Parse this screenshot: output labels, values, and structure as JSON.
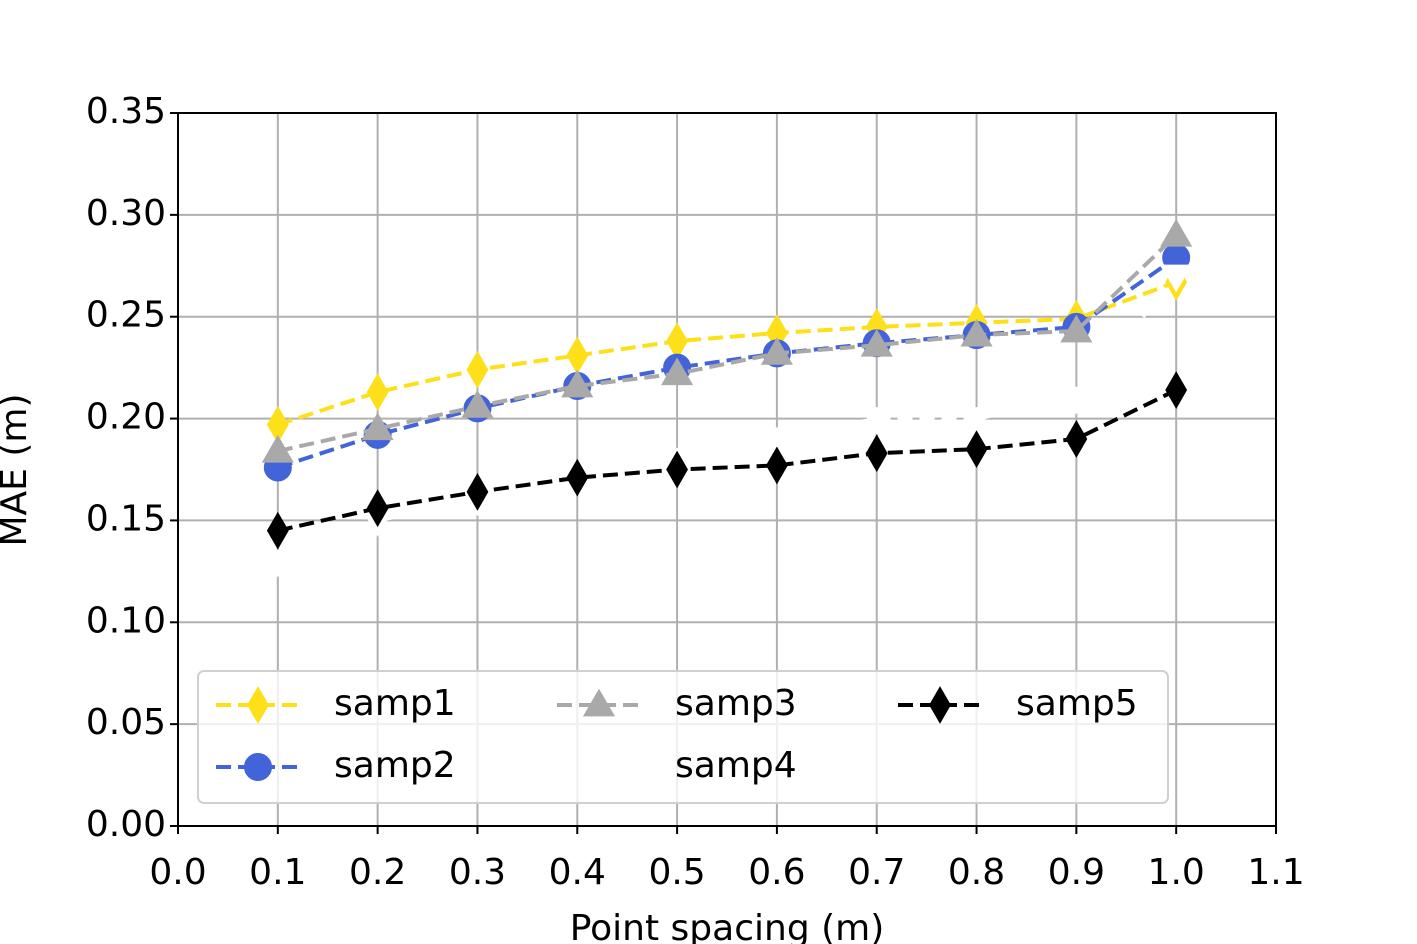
{
  "chart_data": {
    "type": "line",
    "x_label": "Point spacing (m)",
    "y_label": "MAE (m)",
    "x": [
      0.1,
      0.2,
      0.3,
      0.4,
      0.5,
      0.6,
      0.7,
      0.8,
      0.9,
      1.0
    ],
    "series": [
      {
        "name": "samp1",
        "color": "#fde01a",
        "marker": "thin_diamond",
        "values": [
          0.197,
          0.213,
          0.224,
          0.231,
          0.238,
          0.242,
          0.245,
          0.247,
          0.249,
          0.267
        ]
      },
      {
        "name": "samp2",
        "color": "#4364d8",
        "marker": "circle",
        "values": [
          0.176,
          0.192,
          0.205,
          0.216,
          0.225,
          0.232,
          0.237,
          0.241,
          0.245,
          0.279
        ]
      },
      {
        "name": "samp3",
        "color": "#a9a9a9",
        "marker": "triangle_up",
        "values": [
          0.184,
          0.195,
          0.206,
          0.216,
          0.222,
          0.232,
          0.236,
          0.241,
          0.243,
          0.29
        ]
      },
      {
        "name": "samp4",
        "color": "#ffffff",
        "marker": "triangle_down",
        "values": [
          0.13,
          0.15,
          0.16,
          0.17,
          0.18,
          0.19,
          0.2,
          0.2,
          0.21,
          0.27
        ]
      },
      {
        "name": "samp5",
        "color": "#000000",
        "marker": "thin_diamond",
        "values": [
          0.145,
          0.156,
          0.164,
          0.171,
          0.175,
          0.177,
          0.183,
          0.185,
          0.19,
          0.214
        ]
      }
    ],
    "xlim": [
      0,
      1.1
    ],
    "xticks": [
      {
        "value": 0,
        "label": "0.0"
      },
      0.1,
      0.2,
      0.3,
      0.4,
      0.5,
      0.6,
      0.7,
      0.8,
      0.9,
      {
        "value": 1,
        "label": "1.0"
      },
      1.1
    ],
    "ylim": [
      0,
      0.35
    ],
    "yticks": [
      {
        "value": 0,
        "label": "0.00"
      },
      0.05,
      {
        "value": 0.1,
        "label": "0.10"
      },
      0.15,
      {
        "value": 0.2,
        "label": "0.20"
      },
      0.25,
      {
        "value": 0.3,
        "label": "0.30"
      },
      0.35
    ],
    "grid": true,
    "legend_loc": "lower left",
    "legend_columns": 3
  }
}
